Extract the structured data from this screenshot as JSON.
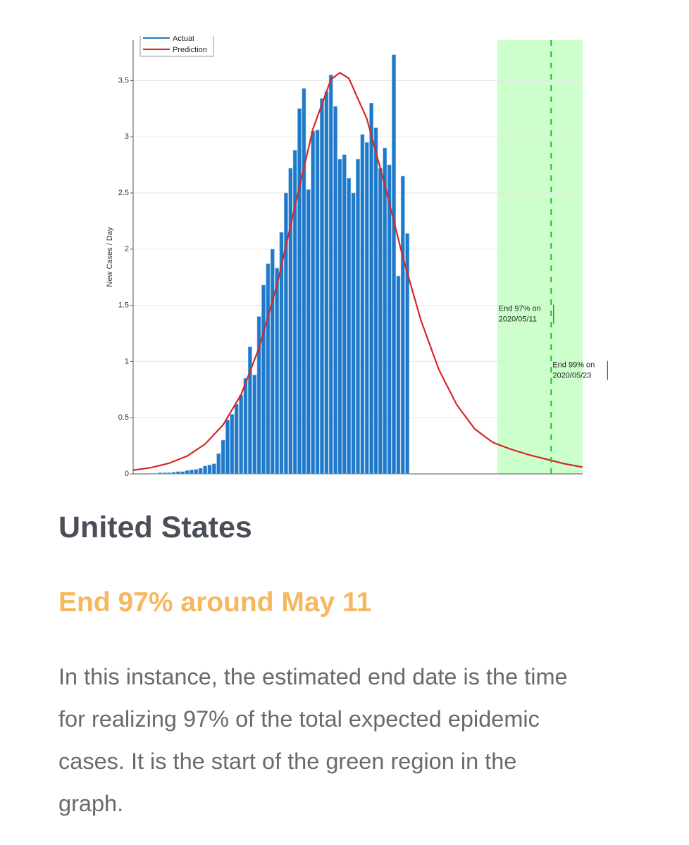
{
  "chart_data": {
    "type": "bar-line",
    "ylabel": "New Cases / Day",
    "xlim": [
      0,
      100
    ],
    "ylim": [
      0,
      3.86
    ],
    "yticks": [
      0,
      0.5,
      1,
      1.5,
      2,
      2.5,
      3,
      3.5
    ],
    "grid": true,
    "legend": "upper left",
    "series": [
      {
        "name": "Actual",
        "type": "bar",
        "color": "#1f78c8",
        "x": [
          4,
          5,
          6,
          7,
          8,
          9,
          10,
          11,
          12,
          13,
          14,
          15,
          16,
          17,
          18,
          19,
          20,
          21,
          22,
          23,
          24,
          25,
          26,
          27,
          28,
          29,
          30,
          31,
          32,
          33,
          34,
          35,
          36,
          37,
          38,
          39,
          40,
          41,
          42,
          43,
          44,
          45,
          46,
          47,
          48,
          49,
          50,
          51,
          52,
          53,
          54,
          55,
          56,
          57,
          58,
          59,
          60,
          61
        ],
        "values": [
          0.005,
          0.005,
          0.01,
          0.01,
          0.01,
          0.015,
          0.02,
          0.02,
          0.03,
          0.035,
          0.04,
          0.05,
          0.07,
          0.08,
          0.09,
          0.18,
          0.3,
          0.48,
          0.53,
          0.62,
          0.7,
          0.85,
          1.13,
          0.88,
          1.4,
          1.68,
          1.87,
          2.0,
          1.83,
          2.15,
          2.5,
          2.72,
          2.88,
          3.25,
          3.43,
          2.53,
          3.05,
          3.06,
          3.34,
          3.4,
          3.55,
          3.27,
          2.8,
          2.84,
          2.63,
          2.5,
          2.8,
          3.02,
          2.95,
          3.3,
          3.08,
          2.72,
          2.9,
          2.75,
          3.73,
          1.76,
          2.65,
          2.14
        ]
      },
      {
        "name": "Prediction",
        "type": "line",
        "color": "#d62728",
        "x": [
          0,
          4,
          8,
          12,
          16,
          20,
          24,
          28,
          32,
          36,
          40,
          44,
          46,
          48,
          52,
          56,
          60,
          64,
          68,
          72,
          76,
          80,
          84,
          88,
          92,
          96,
          100
        ],
        "values": [
          0.033,
          0.056,
          0.095,
          0.159,
          0.265,
          0.436,
          0.705,
          1.12,
          1.68,
          2.38,
          3.07,
          3.51,
          3.57,
          3.52,
          3.16,
          2.57,
          1.93,
          1.37,
          0.93,
          0.615,
          0.4,
          0.28,
          0.22,
          0.17,
          0.13,
          0.09,
          0.06
        ]
      }
    ],
    "shade": {
      "range": [
        81,
        100
      ],
      "color": "#ccffcc"
    },
    "marker_line": {
      "x": 93,
      "color": "#22bb22"
    },
    "annotations": [
      {
        "x": 81,
        "y": 1.45,
        "lines": [
          "End 97% on",
          "2020/05/11"
        ]
      },
      {
        "x": 93,
        "y": 0.95,
        "lines": [
          "End 99% on",
          "2020/05/23"
        ]
      }
    ]
  },
  "heading": "United States",
  "subheading": "End 97% around May 11",
  "body": [
    "In this instance, the estimated end date is the time",
    "for realizing 97% of the total expected epidemic",
    "cases. It is the start of the green region in the",
    "graph."
  ]
}
